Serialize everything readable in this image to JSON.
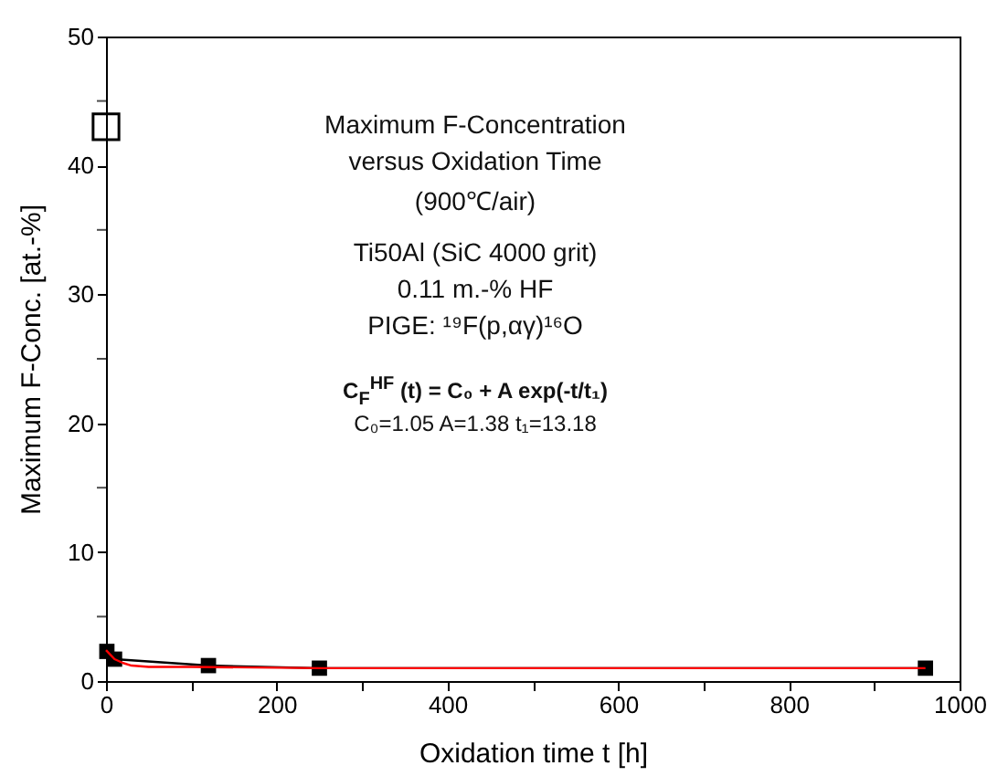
{
  "chart_data": {
    "type": "line",
    "xlabel": "Oxidation time t [h]",
    "ylabel": "Maximum F-Conc. [at.-%]",
    "annotations": [
      "Maximum F-Concentration",
      "versus Oxidation Time",
      "(900℃/air)",
      "Ti50Al (SiC 4000 grit)",
      "0.11 m.-% HF",
      "PIGE: ¹⁹F(p,αγ)¹⁶O",
      "C$_{F}$$^{HF}$ (t) = C₀ + A exp(-t/t₁)",
      "C₀=1.05   A=1.38  t₁=13.18"
    ],
    "series": [
      {
        "type": "line",
        "color": "#000000",
        "marker": "square",
        "x": [
          1,
          10,
          120,
          250,
          960
        ],
        "values": [
          2.3,
          1.7,
          1.2,
          1.0,
          1.0
        ]
      },
      {
        "type": "line",
        "color": "#ff0000",
        "marker": "none",
        "x": [
          0,
          10,
          20,
          30,
          50,
          100,
          250,
          960
        ],
        "values": [
          2.4,
          1.7,
          1.4,
          1.2,
          1.1,
          1.1,
          1.0,
          1.0
        ]
      },
      {
        "type": "scatter",
        "color": "#000000",
        "marker": "square",
        "x": [
          0
        ],
        "values": [
          43
        ]
      }
    ],
    "xlim": [
      0,
      1000
    ],
    "xticks": [
      0,
      {
        "value": 100,
        "label": null
      },
      200,
      {
        "value": 300,
        "label": null
      },
      400,
      {
        "value": 500,
        "label": null
      },
      600,
      {
        "value": 700,
        "label": null
      },
      800,
      {
        "value": 900,
        "label": null
      },
      1000
    ],
    "ylim": [
      0,
      50
    ],
    "yticks": [
      0,
      {
        "value": 5,
        "label": null
      },
      10,
      {
        "value": 15,
        "label": null
      },
      20,
      {
        "value": 25,
        "label": null
      },
      30,
      {
        "value": 35,
        "label": null
      },
      40,
      {
        "value": 45,
        "label": null
      },
      50
    ],
    "grid": false
  }
}
